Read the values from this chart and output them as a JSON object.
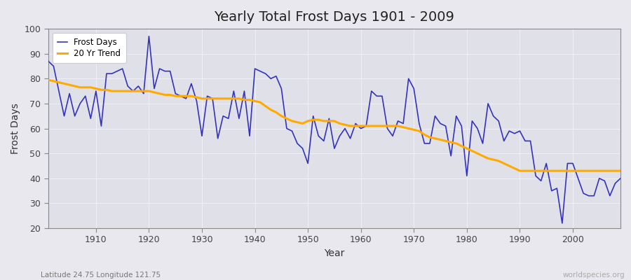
{
  "title": "Yearly Total Frost Days 1901 - 2009",
  "xlabel": "Year",
  "ylabel": "Frost Days",
  "subtitle_left": "Latitude 24.75 Longitude 121.75",
  "subtitle_right": "worldspecies.org",
  "ylim": [
    20,
    100
  ],
  "xlim": [
    1901,
    2009
  ],
  "yticks": [
    20,
    30,
    40,
    50,
    60,
    70,
    80,
    90,
    100
  ],
  "xticks": [
    1910,
    1920,
    1930,
    1940,
    1950,
    1960,
    1970,
    1980,
    1990,
    2000
  ],
  "frost_color": "#3333bb",
  "trend_color": "#ffaa00",
  "background_color": "#e8e8ee",
  "plot_bg_color": "#e0e0e8",
  "grid_color": "#f0f0f8",
  "spine_color": "#888888",
  "tick_color": "#888888",
  "title_fontsize": 14,
  "label_fontsize": 10,
  "tick_fontsize": 9,
  "legend_fontsize": 8.5,
  "years": [
    1901,
    1902,
    1903,
    1904,
    1905,
    1906,
    1907,
    1908,
    1909,
    1910,
    1911,
    1912,
    1913,
    1914,
    1915,
    1916,
    1917,
    1918,
    1919,
    1920,
    1921,
    1922,
    1923,
    1924,
    1925,
    1926,
    1927,
    1928,
    1929,
    1930,
    1931,
    1932,
    1933,
    1934,
    1935,
    1936,
    1937,
    1938,
    1939,
    1940,
    1941,
    1942,
    1943,
    1944,
    1945,
    1946,
    1947,
    1948,
    1949,
    1950,
    1951,
    1952,
    1953,
    1954,
    1955,
    1956,
    1957,
    1958,
    1959,
    1960,
    1961,
    1962,
    1963,
    1964,
    1965,
    1966,
    1967,
    1968,
    1969,
    1970,
    1971,
    1972,
    1973,
    1974,
    1975,
    1976,
    1977,
    1978,
    1979,
    1980,
    1981,
    1982,
    1983,
    1984,
    1985,
    1986,
    1987,
    1988,
    1989,
    1990,
    1991,
    1992,
    1993,
    1994,
    1995,
    1996,
    1997,
    1998,
    1999,
    2000,
    2001,
    2002,
    2003,
    2004,
    2005,
    2006,
    2007,
    2008,
    2009
  ],
  "frost_days": [
    87,
    85,
    75,
    65,
    74,
    65,
    70,
    73,
    64,
    75,
    61,
    82,
    82,
    83,
    84,
    77,
    75,
    77,
    74,
    97,
    76,
    84,
    83,
    83,
    74,
    73,
    72,
    78,
    71,
    57,
    73,
    72,
    56,
    65,
    64,
    75,
    64,
    75,
    57,
    84,
    83,
    82,
    80,
    81,
    76,
    60,
    59,
    54,
    52,
    46,
    65,
    57,
    55,
    64,
    52,
    57,
    60,
    56,
    62,
    60,
    61,
    75,
    73,
    73,
    60,
    57,
    63,
    62,
    80,
    76,
    62,
    54,
    54,
    65,
    62,
    61,
    49,
    65,
    61,
    41,
    63,
    60,
    54,
    70,
    65,
    63,
    55,
    59,
    58,
    59,
    55,
    55,
    41,
    39,
    46,
    35,
    36,
    22,
    46,
    46,
    40,
    34,
    33,
    33,
    40,
    39,
    33,
    38,
    40
  ],
  "trend_years": [
    1901,
    1902,
    1903,
    1904,
    1905,
    1906,
    1907,
    1908,
    1909,
    1910,
    1911,
    1912,
    1913,
    1914,
    1915,
    1916,
    1917,
    1918,
    1919,
    1920,
    1921,
    1922,
    1923,
    1924,
    1925,
    1926,
    1927,
    1928,
    1929,
    1930,
    1931,
    1932,
    1933,
    1934,
    1935,
    1936,
    1937,
    1938,
    1939,
    1940,
    1941,
    1942,
    1943,
    1944,
    1945,
    1946,
    1947,
    1948,
    1949,
    1950,
    1951,
    1952,
    1953,
    1954,
    1955,
    1956,
    1957,
    1958,
    1959,
    1960,
    1961,
    1962,
    1963,
    1964,
    1965,
    1966,
    1967,
    1968,
    1969,
    1970,
    1971,
    1972,
    1973,
    1974,
    1975,
    1976,
    1977,
    1978,
    1979,
    1980,
    1981,
    1982,
    1983,
    1984,
    1985,
    1986,
    1987,
    1988,
    1989,
    1990,
    1991,
    1992,
    1993,
    1994,
    1995,
    1996,
    1997,
    1998,
    1999,
    2000,
    2001,
    2002,
    2003,
    2004,
    2005,
    2006,
    2007,
    2008,
    2009
  ],
  "trend_values": [
    79.5,
    79,
    78.5,
    78,
    77.5,
    77,
    76.5,
    76.5,
    76.5,
    76,
    75.5,
    75.5,
    75,
    75,
    75,
    75,
    75,
    75,
    75,
    75,
    74.5,
    74,
    73.5,
    73.5,
    73,
    73,
    73,
    73,
    72.5,
    72,
    72,
    72,
    72,
    72,
    72,
    72,
    72,
    71.5,
    71.5,
    71,
    70.5,
    69,
    67.5,
    66.5,
    65,
    64,
    63,
    62.5,
    62,
    63,
    63.5,
    63.5,
    63,
    63,
    63,
    62,
    61.5,
    61,
    61,
    61,
    61,
    61,
    61,
    61,
    61,
    61,
    61,
    60.5,
    60,
    59.5,
    59,
    57.5,
    56.5,
    56,
    55.5,
    55,
    54.5,
    54,
    53,
    52,
    51,
    50,
    49,
    48,
    47.5,
    47,
    46,
    45,
    44,
    43,
    43,
    43,
    43,
    43,
    43,
    43,
    43,
    43,
    43,
    43,
    43,
    43,
    43,
    43,
    43,
    43,
    43,
    43,
    43
  ]
}
